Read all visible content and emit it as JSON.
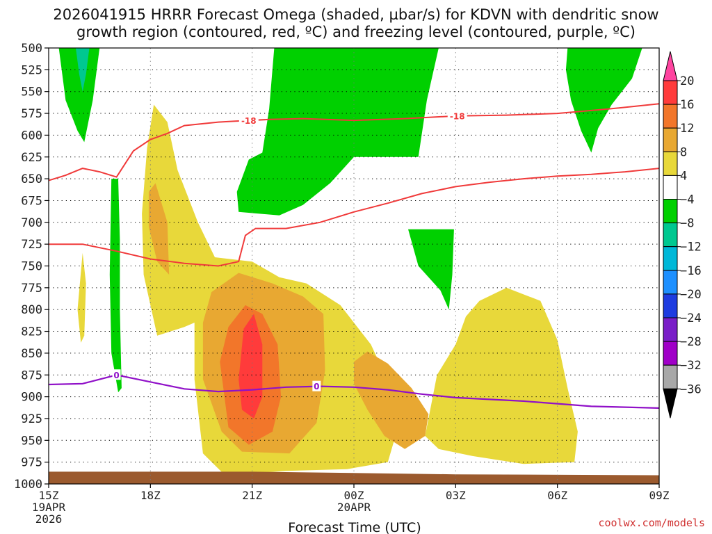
{
  "chart_data": {
    "type": "heatmap",
    "title_line1": "2026041915 HRRR Forecast Omega (shaded, µbar/s) for KDVN with dendritic snow",
    "title_line2": "growth region (contoured, red, ºC) and freezing level (contoured, purple, ºC)",
    "xlabel": "Forecast Time (UTC)",
    "credit": "coolwx.com/models",
    "y_axis": {
      "quantity": "pressure (hPa)",
      "inverted": true,
      "range": [
        1000,
        500
      ],
      "ticks": [
        "500",
        "525",
        "550",
        "575",
        "600",
        "625",
        "650",
        "675",
        "700",
        "725",
        "750",
        "775",
        "800",
        "825",
        "850",
        "875",
        "900",
        "925",
        "950",
        "975",
        "1000"
      ]
    },
    "x_axis": {
      "range_hours": [
        0,
        18
      ],
      "ticks": [
        {
          "hour": 0,
          "lines": [
            "15Z",
            "19APR",
            "2026"
          ]
        },
        {
          "hour": 3,
          "lines": [
            "18Z"
          ]
        },
        {
          "hour": 6,
          "lines": [
            "21Z"
          ]
        },
        {
          "hour": 9,
          "lines": [
            "00Z",
            "20APR"
          ]
        },
        {
          "hour": 12,
          "lines": [
            "03Z"
          ]
        },
        {
          "hour": 15,
          "lines": [
            "06Z"
          ]
        },
        {
          "hour": 18,
          "lines": [
            "09Z"
          ]
        }
      ]
    },
    "grid": true,
    "colorbar": {
      "labels": [
        "20",
        "16",
        "12",
        "8",
        "4",
        "−4",
        "−8",
        "−12",
        "−16",
        "−20",
        "−24",
        "−28",
        "−32",
        "−36"
      ],
      "colors": [
        "#ff44a0",
        "#ff3b3b",
        "#f2762a",
        "#e8a832",
        "#e8d83a",
        "#ffffff",
        "#00d000",
        "#00c890",
        "#00b8d8",
        "#1e90ff",
        "#1e3ce0",
        "#7a1ec8",
        "#a000c8",
        "#a8a8a8",
        "#000000"
      ]
    },
    "omega_regions": [
      {
        "color": "#00d000",
        "value": -6,
        "points": [
          [
            0.3,
            500
          ],
          [
            1.5,
            500
          ],
          [
            1.3,
            560
          ],
          [
            1.05,
            608
          ],
          [
            0.85,
            595
          ],
          [
            0.5,
            560
          ]
        ]
      },
      {
        "color": "#00c890",
        "value": -10,
        "points": [
          [
            0.8,
            500
          ],
          [
            1.2,
            500
          ],
          [
            1.1,
            530
          ],
          [
            1.0,
            550
          ],
          [
            0.9,
            530
          ]
        ]
      },
      {
        "color": "#00d000",
        "value": -6,
        "points": [
          [
            6.65,
            500
          ],
          [
            11.5,
            500
          ],
          [
            11.15,
            560
          ],
          [
            10.9,
            625
          ],
          [
            9.0,
            625
          ],
          [
            8.3,
            655
          ],
          [
            7.5,
            680
          ],
          [
            6.8,
            692
          ],
          [
            5.6,
            688
          ],
          [
            5.55,
            665
          ],
          [
            5.9,
            628
          ],
          [
            6.3,
            620
          ],
          [
            6.5,
            570
          ]
        ]
      },
      {
        "color": "#00d000",
        "value": -6,
        "points": [
          [
            15.3,
            500
          ],
          [
            17.5,
            500
          ],
          [
            17.2,
            535
          ],
          [
            16.6,
            565
          ],
          [
            16.2,
            592
          ],
          [
            16.0,
            620
          ],
          [
            15.7,
            595
          ],
          [
            15.4,
            560
          ],
          [
            15.25,
            525
          ]
        ]
      },
      {
        "color": "#00d000",
        "value": -6,
        "points": [
          [
            10.6,
            708
          ],
          [
            11.95,
            708
          ],
          [
            11.9,
            760
          ],
          [
            11.8,
            800
          ],
          [
            11.55,
            778
          ],
          [
            10.9,
            750
          ]
        ]
      },
      {
        "color": "#00d000",
        "value": -6,
        "points": [
          [
            1.85,
            650
          ],
          [
            2.05,
            650
          ],
          [
            2.1,
            720
          ],
          [
            2.1,
            800
          ],
          [
            2.15,
            890
          ],
          [
            2.05,
            895
          ],
          [
            1.85,
            850
          ],
          [
            1.8,
            760
          ]
        ]
      },
      {
        "color": "#e8d83a",
        "value": 6,
        "points": [
          [
            2.9,
            615
          ],
          [
            3.1,
            565
          ],
          [
            3.5,
            585
          ],
          [
            3.8,
            640
          ],
          [
            4.4,
            700
          ],
          [
            4.9,
            740
          ],
          [
            6.0,
            745
          ],
          [
            6.8,
            763
          ],
          [
            7.6,
            770
          ],
          [
            8.6,
            795
          ],
          [
            9.5,
            840
          ],
          [
            10.1,
            890
          ],
          [
            10.3,
            935
          ],
          [
            10.0,
            975
          ],
          [
            8.8,
            983
          ],
          [
            7.0,
            985
          ],
          [
            5.2,
            990
          ],
          [
            4.55,
            965
          ],
          [
            4.3,
            880
          ],
          [
            4.3,
            815
          ],
          [
            4.0,
            820
          ],
          [
            3.2,
            830
          ],
          [
            2.8,
            760
          ],
          [
            2.75,
            690
          ]
        ]
      },
      {
        "color": "#e8d83a",
        "value": 6,
        "points": [
          [
            11.1,
            945
          ],
          [
            11.45,
            875
          ],
          [
            12.0,
            840
          ],
          [
            12.3,
            808
          ],
          [
            12.7,
            790
          ],
          [
            13.5,
            775
          ],
          [
            14.5,
            790
          ],
          [
            15.0,
            835
          ],
          [
            15.3,
            890
          ],
          [
            15.6,
            940
          ],
          [
            15.5,
            975
          ],
          [
            14.0,
            977
          ],
          [
            12.5,
            968
          ],
          [
            11.5,
            960
          ]
        ]
      },
      {
        "color": "#e8d83a",
        "value": 6,
        "points": [
          [
            0.85,
            800
          ],
          [
            1.0,
            735
          ],
          [
            1.1,
            770
          ],
          [
            1.05,
            830
          ],
          [
            0.95,
            838
          ]
        ]
      },
      {
        "color": "#e8a832",
        "value": 10,
        "points": [
          [
            4.55,
            815
          ],
          [
            4.8,
            780
          ],
          [
            5.6,
            758
          ],
          [
            6.6,
            770
          ],
          [
            7.5,
            785
          ],
          [
            8.1,
            805
          ],
          [
            8.15,
            870
          ],
          [
            7.9,
            930
          ],
          [
            7.1,
            965
          ],
          [
            5.7,
            963
          ],
          [
            5.1,
            940
          ],
          [
            4.55,
            880
          ]
        ]
      },
      {
        "color": "#e8a832",
        "value": 10,
        "points": [
          [
            9.0,
            860
          ],
          [
            9.4,
            848
          ],
          [
            10.0,
            862
          ],
          [
            10.7,
            890
          ],
          [
            11.2,
            920
          ],
          [
            11.1,
            945
          ],
          [
            10.5,
            960
          ],
          [
            9.9,
            945
          ],
          [
            9.4,
            915
          ],
          [
            9.0,
            885
          ]
        ]
      },
      {
        "color": "#e8a832",
        "value": 10,
        "points": [
          [
            2.95,
            665
          ],
          [
            3.15,
            655
          ],
          [
            3.5,
            700
          ],
          [
            3.55,
            760
          ],
          [
            3.2,
            745
          ],
          [
            2.95,
            705
          ]
        ]
      },
      {
        "color": "#f2762a",
        "value": 14,
        "points": [
          [
            5.05,
            860
          ],
          [
            5.3,
            820
          ],
          [
            5.8,
            795
          ],
          [
            6.3,
            805
          ],
          [
            6.75,
            840
          ],
          [
            6.85,
            900
          ],
          [
            6.6,
            940
          ],
          [
            5.9,
            955
          ],
          [
            5.3,
            935
          ]
        ]
      },
      {
        "color": "#ff3b3b",
        "value": 18,
        "points": [
          [
            5.6,
            880
          ],
          [
            5.75,
            822
          ],
          [
            6.05,
            805
          ],
          [
            6.3,
            840
          ],
          [
            6.3,
            900
          ],
          [
            6.05,
            925
          ],
          [
            5.7,
            915
          ]
        ]
      }
    ],
    "dgz_contours": [
      {
        "label": "-18",
        "color": "#f03a3a",
        "points": [
          [
            0,
            652
          ],
          [
            0.5,
            646
          ],
          [
            1.0,
            638
          ],
          [
            1.5,
            642
          ],
          [
            2.0,
            648
          ],
          [
            2.5,
            618
          ],
          [
            3.0,
            605
          ],
          [
            3.5,
            598
          ],
          [
            4.0,
            589
          ],
          [
            5.0,
            585
          ],
          [
            5.5,
            584
          ],
          [
            6.5,
            582
          ],
          [
            7.5,
            581
          ],
          [
            9.0,
            583
          ],
          [
            10.5,
            581
          ],
          [
            12.0,
            578
          ],
          [
            13.5,
            577
          ],
          [
            15.0,
            575
          ],
          [
            16.5,
            570
          ],
          [
            18.0,
            564
          ]
        ]
      },
      {
        "label": "",
        "color": "#f03a3a",
        "points": [
          [
            0,
            725
          ],
          [
            1.0,
            725
          ],
          [
            2.0,
            733
          ],
          [
            3.0,
            742
          ],
          [
            4.0,
            747
          ],
          [
            5.0,
            750
          ],
          [
            5.6,
            745
          ],
          [
            5.8,
            715
          ],
          [
            6.1,
            707
          ],
          [
            7.0,
            707
          ],
          [
            8.0,
            700
          ],
          [
            9.0,
            688
          ],
          [
            10.0,
            678
          ],
          [
            11.0,
            667
          ],
          [
            12.0,
            659
          ],
          [
            13.0,
            654
          ],
          [
            14.0,
            650
          ],
          [
            15.0,
            647
          ],
          [
            16.0,
            645
          ],
          [
            17.0,
            642
          ],
          [
            18.0,
            638
          ]
        ]
      }
    ],
    "freezing_level": {
      "label": "0",
      "color": "#9010c8",
      "points": [
        [
          0,
          886
        ],
        [
          1.0,
          885
        ],
        [
          2.0,
          875
        ],
        [
          3.0,
          883
        ],
        [
          4.0,
          891
        ],
        [
          5.0,
          894
        ],
        [
          6.0,
          892
        ],
        [
          7.0,
          889
        ],
        [
          8.0,
          888
        ],
        [
          9.0,
          889
        ],
        [
          10.0,
          892
        ],
        [
          11.0,
          897
        ],
        [
          12.0,
          901
        ],
        [
          13.0,
          903
        ],
        [
          14.0,
          905
        ],
        [
          15.0,
          908
        ],
        [
          16.0,
          911
        ],
        [
          17.0,
          912
        ],
        [
          18.0,
          913
        ]
      ]
    },
    "ground": {
      "color": "#9b5a2e",
      "points": [
        [
          0,
          986
        ],
        [
          6.0,
          986
        ],
        [
          12.0,
          989
        ],
        [
          18.0,
          990
        ]
      ]
    }
  }
}
